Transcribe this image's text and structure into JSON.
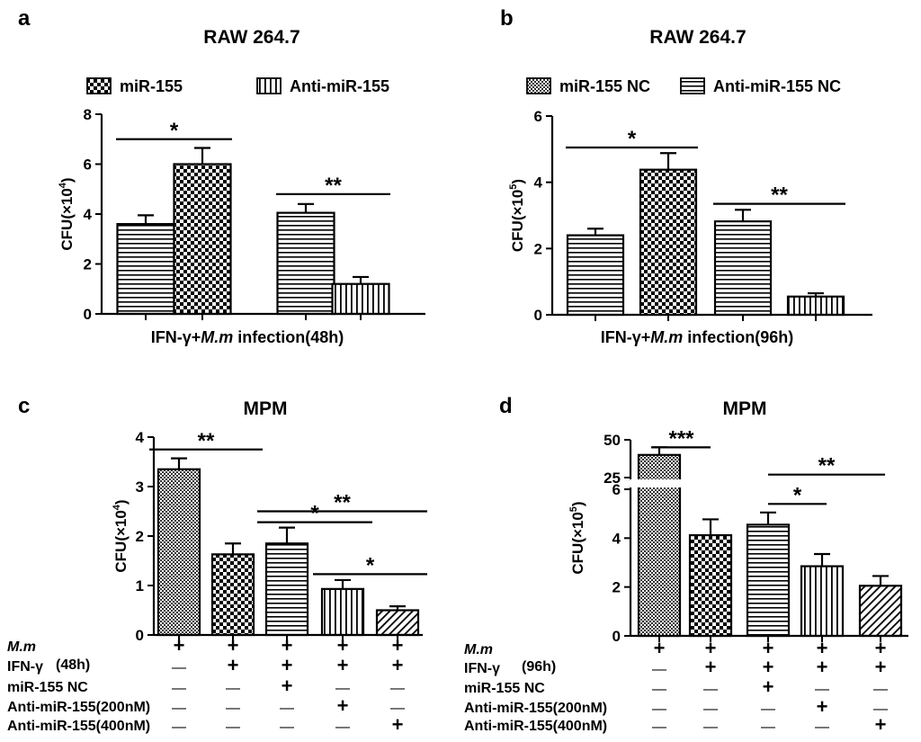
{
  "chart_data": [
    {
      "type": "bar",
      "panel_letter": "a",
      "title": "RAW 264.7",
      "legend": [
        {
          "label": "miR-155",
          "pattern": "checker"
        },
        {
          "label": "Anti-miR-155",
          "pattern": "vlines"
        }
      ],
      "ylabel_base": "CFU(×10",
      "ylabel_exp": "4",
      "ylabel_end": ")",
      "ylim": [
        0,
        8
      ],
      "yticks": [
        "0",
        "2",
        "4",
        "6",
        "8"
      ],
      "bars": [
        {
          "value": 3.6,
          "error": 0.35,
          "pattern": "hlines"
        },
        {
          "value": 6.0,
          "error": 0.65,
          "pattern": "checker"
        },
        {
          "value": 4.05,
          "error": 0.35,
          "pattern": "hlines"
        },
        {
          "value": 1.2,
          "error": 0.28,
          "pattern": "vlines"
        }
      ],
      "xlabel_pre": "IFN-γ+",
      "xlabel_italic": "M.m",
      "xlabel_post": " infection(48h)",
      "significance": [
        {
          "from": 0,
          "to": 1,
          "y": 7.0,
          "label": "*"
        },
        {
          "from": 2,
          "to": 3,
          "y": 4.8,
          "label": "**"
        }
      ]
    },
    {
      "type": "bar",
      "panel_letter": "b",
      "title": "RAW 264.7",
      "legend": [
        {
          "label": "miR-155 NC",
          "pattern": "dense"
        },
        {
          "label": "Anti-miR-155 NC",
          "pattern": "hlines"
        }
      ],
      "ylabel_base": "CFU(×10",
      "ylabel_exp": "5",
      "ylabel_end": ")",
      "ylim": [
        0,
        6
      ],
      "yticks": [
        "0",
        "2",
        "4",
        "6"
      ],
      "bars": [
        {
          "value": 2.4,
          "error": 0.2,
          "pattern": "hlines"
        },
        {
          "value": 4.38,
          "error": 0.5,
          "pattern": "checker"
        },
        {
          "value": 2.82,
          "error": 0.35,
          "pattern": "hlines"
        },
        {
          "value": 0.55,
          "error": 0.1,
          "pattern": "vlines"
        }
      ],
      "xlabel_pre": "IFN-γ+",
      "xlabel_italic": "M.m",
      "xlabel_post": " infection(96h)",
      "significance": [
        {
          "from": 0,
          "to": 1,
          "y": 5.05,
          "label": "*"
        },
        {
          "from": 2,
          "to": 3,
          "y": 3.35,
          "label": "**"
        }
      ]
    },
    {
      "type": "bar",
      "panel_letter": "c",
      "title": "MPM",
      "ylabel_base": "CFU(×10",
      "ylabel_exp": "4",
      "ylabel_end": ")",
      "ylim": [
        0,
        4
      ],
      "yticks": [
        "0",
        "1",
        "2",
        "3",
        "4"
      ],
      "bars": [
        {
          "value": 3.35,
          "error": 0.22,
          "pattern": "dense"
        },
        {
          "value": 1.63,
          "error": 0.22,
          "pattern": "checker"
        },
        {
          "value": 1.85,
          "error": 0.32,
          "pattern": "hlines"
        },
        {
          "value": 0.93,
          "error": 0.18,
          "pattern": "vlines"
        },
        {
          "value": 0.5,
          "error": 0.08,
          "pattern": "diag"
        }
      ],
      "significance": [
        {
          "from": 0,
          "to": 1,
          "y": 3.75,
          "label": "**"
        },
        {
          "from": 2,
          "to": 3,
          "y": 2.28,
          "label": "*"
        },
        {
          "from": 2,
          "to": 4,
          "y": 2.5,
          "label": "**"
        },
        {
          "from": 3,
          "to": 4,
          "y": 1.23,
          "label": "*"
        }
      ],
      "condition_table": {
        "time": "(48h)",
        "rows": [
          {
            "label": "M.m",
            "italic": true,
            "values": [
              "+",
              "+",
              "+",
              "+",
              "+"
            ]
          },
          {
            "label": "IFN-γ",
            "italic": false,
            "values": [
              "—",
              "+",
              "+",
              "+",
              "+"
            ]
          },
          {
            "label": "miR-155 NC",
            "italic": false,
            "values": [
              "—",
              "—",
              "+",
              "—",
              "—"
            ]
          },
          {
            "label": "Anti-miR-155(200nM)",
            "italic": false,
            "values": [
              "—",
              "—",
              "—",
              "+",
              "—"
            ]
          },
          {
            "label": "Anti-miR-155(400nM)",
            "italic": false,
            "values": [
              "—",
              "—",
              "—",
              "—",
              "+"
            ]
          }
        ]
      }
    },
    {
      "type": "bar",
      "panel_letter": "d",
      "title": "MPM",
      "ylabel_base": "CFU(×10",
      "ylabel_exp": "5",
      "ylabel_end": ")",
      "ylim_lower": [
        0,
        6
      ],
      "ylim_upper": [
        25,
        50
      ],
      "yticks_lower": [
        "0",
        "2",
        "4",
        "6"
      ],
      "yticks_upper": [
        "25",
        "50"
      ],
      "bars": [
        {
          "value": 40,
          "error": 5,
          "pattern": "dense"
        },
        {
          "value": 4.12,
          "error": 0.65,
          "pattern": "checker"
        },
        {
          "value": 4.55,
          "error": 0.5,
          "pattern": "hlines"
        },
        {
          "value": 2.85,
          "error": 0.5,
          "pattern": "vlines"
        },
        {
          "value": 2.05,
          "error": 0.4,
          "pattern": "diag"
        }
      ],
      "significance": [
        {
          "from": 0,
          "to": 1,
          "y": 45,
          "label": "***",
          "axis": "upper"
        },
        {
          "from": 2,
          "to": 3,
          "y": 5.4,
          "label": "*",
          "axis": "lower"
        },
        {
          "from": 2,
          "to": 4,
          "y": 6.6,
          "label": "**",
          "axis": "lower"
        }
      ],
      "condition_table": {
        "time": "(96h)",
        "rows": [
          {
            "label": "M.m",
            "italic": true,
            "values": [
              "+",
              "+",
              "+",
              "+",
              "+"
            ]
          },
          {
            "label": "IFN-γ",
            "italic": false,
            "values": [
              "—",
              "+",
              "+",
              "+",
              "+"
            ]
          },
          {
            "label": "miR-155 NC",
            "italic": false,
            "values": [
              "—",
              "—",
              "+",
              "—",
              "—"
            ]
          },
          {
            "label": "Anti-miR-155(200nM)",
            "italic": false,
            "values": [
              "—",
              "—",
              "—",
              "+",
              "—"
            ]
          },
          {
            "label": "Anti-miR-155(400nM)",
            "italic": false,
            "values": [
              "—",
              "—",
              "—",
              "—",
              "+"
            ]
          }
        ]
      }
    }
  ]
}
